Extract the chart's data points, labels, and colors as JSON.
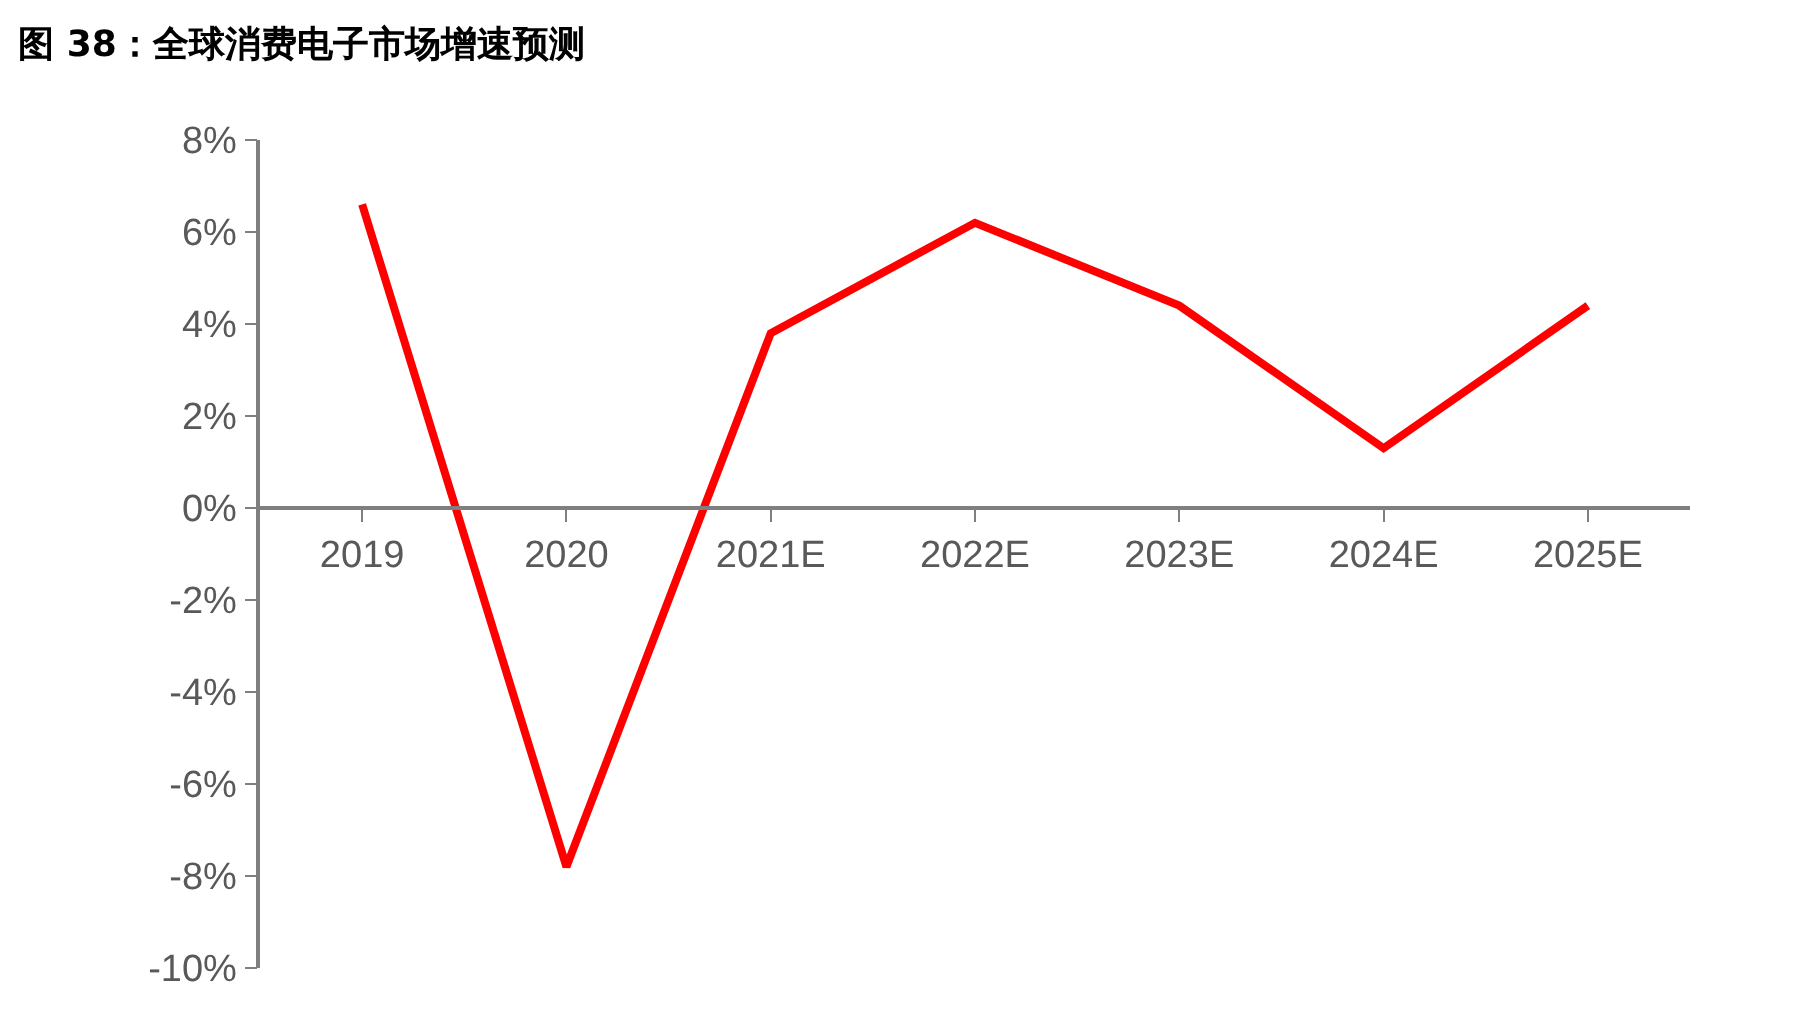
{
  "chart_data": {
    "type": "line",
    "title": "图 38：全球消费电子市场增速预测",
    "categories": [
      "2019",
      "2020",
      "2021E",
      "2022E",
      "2023E",
      "2024E",
      "2025E"
    ],
    "series": [
      {
        "color": "#ff0000",
        "values": [
          6.6,
          -7.8,
          3.8,
          6.2,
          4.4,
          1.3,
          4.4
        ]
      }
    ],
    "ylim": [
      -10,
      8
    ],
    "yticks": [
      {
        "value": -10,
        "label": "-10%"
      },
      {
        "value": -8,
        "label": "-8%"
      },
      {
        "value": -6,
        "label": "-6%"
      },
      {
        "value": -4,
        "label": "-4%"
      },
      {
        "value": -2,
        "label": "-2%"
      },
      {
        "value": 0,
        "label": "0%"
      },
      {
        "value": 2,
        "label": "2%"
      },
      {
        "value": 4,
        "label": "4%"
      },
      {
        "value": 6,
        "label": "6%"
      },
      {
        "value": 8,
        "label": "8%"
      }
    ],
    "marker": "none",
    "line_style": "solid"
  }
}
